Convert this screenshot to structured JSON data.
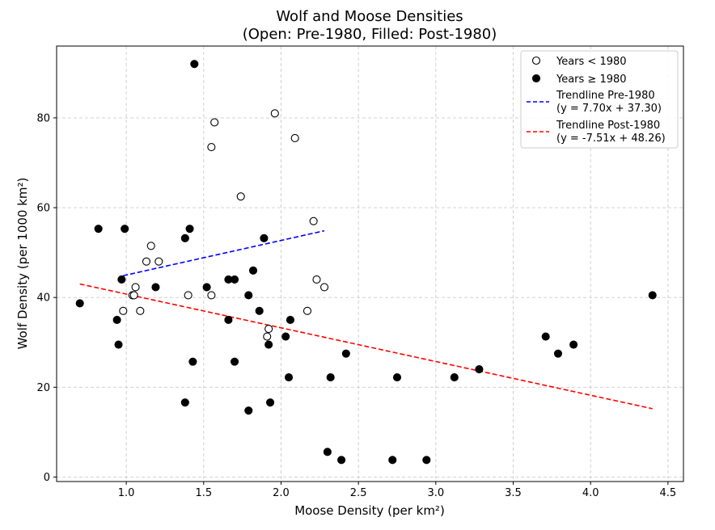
{
  "chart_data": {
    "type": "scatter",
    "title_line1": "Wolf and Moose Densities",
    "title_line2": "(Open: Pre-1980, Filled: Post-1980)",
    "xlabel": "Moose Density (per km²)",
    "ylabel": "Wolf Density (per 1000 km²)",
    "xlim": [
      0.55,
      4.6
    ],
    "ylim": [
      -1,
      96
    ],
    "xticks": [
      1.0,
      1.5,
      2.0,
      2.5,
      3.0,
      3.5,
      4.0,
      4.5
    ],
    "xtick_labels": [
      "1.0",
      "1.5",
      "2.0",
      "2.5",
      "3.0",
      "3.5",
      "4.0",
      "4.5"
    ],
    "yticks": [
      0,
      20,
      40,
      60,
      80
    ],
    "ytick_labels": [
      "0",
      "20",
      "40",
      "60",
      "80"
    ],
    "grid": true,
    "legend_position": "top-right",
    "series": [
      {
        "name": "Years < 1980",
        "marker": "open-circle",
        "color": "#000000",
        "points": [
          [
            1.96,
            81.0
          ],
          [
            1.57,
            79.0
          ],
          [
            2.09,
            75.5
          ],
          [
            1.55,
            73.5
          ],
          [
            1.74,
            62.5
          ],
          [
            2.21,
            57.0
          ],
          [
            1.16,
            51.5
          ],
          [
            1.13,
            48.0
          ],
          [
            1.21,
            48.0
          ],
          [
            2.23,
            44.0
          ],
          [
            1.06,
            42.3
          ],
          [
            2.28,
            42.3
          ],
          [
            1.04,
            40.5
          ],
          [
            1.05,
            40.5
          ],
          [
            1.4,
            40.5
          ],
          [
            1.55,
            40.5
          ],
          [
            0.98,
            37.0
          ],
          [
            1.09,
            37.0
          ],
          [
            2.17,
            37.0
          ],
          [
            1.92,
            33.0
          ],
          [
            1.91,
            31.3
          ]
        ]
      },
      {
        "name": "Years ≥ 1980",
        "marker": "filled-circle",
        "color": "#000000",
        "points": [
          [
            1.44,
            92.0
          ],
          [
            0.82,
            55.3
          ],
          [
            0.99,
            55.3
          ],
          [
            1.41,
            55.3
          ],
          [
            1.38,
            53.2
          ],
          [
            1.89,
            53.2
          ],
          [
            1.82,
            46.0
          ],
          [
            0.97,
            44.0
          ],
          [
            1.66,
            44.0
          ],
          [
            1.7,
            44.0
          ],
          [
            1.19,
            42.3
          ],
          [
            1.52,
            42.3
          ],
          [
            1.79,
            40.5
          ],
          [
            4.4,
            40.5
          ],
          [
            0.7,
            38.7
          ],
          [
            1.86,
            37.0
          ],
          [
            0.94,
            35.0
          ],
          [
            1.66,
            35.0
          ],
          [
            2.06,
            35.0
          ],
          [
            2.03,
            31.3
          ],
          [
            3.71,
            31.3
          ],
          [
            0.95,
            29.5
          ],
          [
            1.92,
            29.5
          ],
          [
            3.89,
            29.5
          ],
          [
            2.42,
            27.5
          ],
          [
            3.79,
            27.5
          ],
          [
            1.43,
            25.7
          ],
          [
            1.7,
            25.7
          ],
          [
            3.28,
            24.0
          ],
          [
            2.05,
            22.2
          ],
          [
            2.32,
            22.2
          ],
          [
            2.75,
            22.2
          ],
          [
            3.12,
            22.2
          ],
          [
            1.38,
            16.6
          ],
          [
            1.93,
            16.6
          ],
          [
            1.79,
            14.8
          ],
          [
            2.3,
            5.6
          ],
          [
            2.39,
            3.8
          ],
          [
            2.72,
            3.8
          ],
          [
            2.94,
            3.8
          ]
        ]
      }
    ],
    "trendlines": [
      {
        "name": "Trendline Pre-1980",
        "equation": "(y = 7.70x + 37.30)",
        "slope": 7.7,
        "intercept": 37.3,
        "x_range": [
          0.98,
          2.28
        ],
        "color": "#0000ff",
        "style": "dashed"
      },
      {
        "name": "Trendline Post-1980",
        "equation": "(y = -7.51x + 48.26)",
        "slope": -7.51,
        "intercept": 48.26,
        "x_range": [
          0.7,
          4.4
        ],
        "color": "#ff0000",
        "style": "dashed"
      }
    ]
  }
}
